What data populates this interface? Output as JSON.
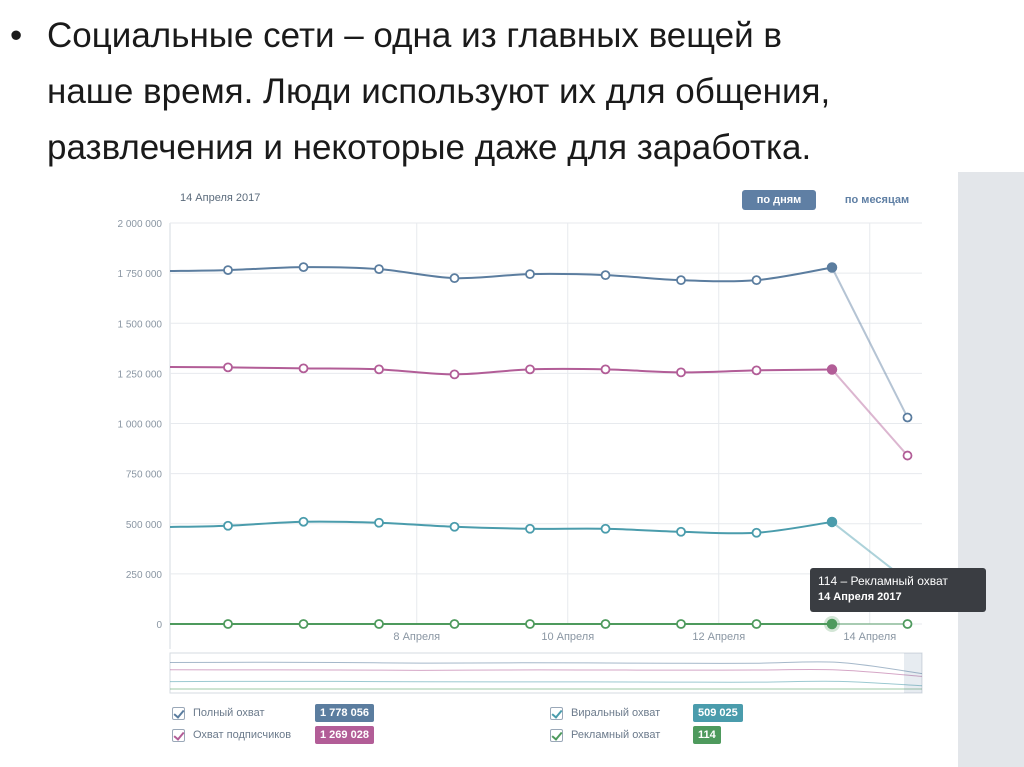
{
  "slide": {
    "bullet": "•",
    "lines": [
      "Социальные сети – одна из главных вещей в",
      "наше время. Люди используют их для общения,",
      "развлечения и некоторые даже для заработка."
    ]
  },
  "chart_header": {
    "date": "14 Апреля 2017",
    "btn_days": "по дням",
    "btn_months": "по месяцам"
  },
  "tooltip": {
    "title": "114 – Рекламный охват",
    "date": "14 Апреля 2017"
  },
  "colors": {
    "full": "#5b7d9f",
    "subscribers": "#b25d97",
    "viral": "#4a9cac",
    "ads": "#4e9a5d",
    "grid": "#e7eaee",
    "tick": "#8a96a3"
  },
  "legend": [
    {
      "label": "Полный охват",
      "value": "1 778 056",
      "color": "#5b7d9f"
    },
    {
      "label": "Охват подписчиков",
      "value": "1 269 028",
      "color": "#b25d97"
    },
    {
      "label": "Виральный охват",
      "value": "509 025",
      "color": "#4a9cac"
    },
    {
      "label": "Рекламный охват",
      "value": "114",
      "color": "#4e9a5d"
    }
  ],
  "chart_data": {
    "type": "line",
    "ylim": [
      0,
      2000000
    ],
    "yticks": [
      "2 000 000",
      "1 750 000",
      "1 500 000",
      "1 250 000",
      "1 000 000",
      "750 000",
      "500 000",
      "250 000",
      "0"
    ],
    "xticks": [
      {
        "i": 2,
        "label": "8 Апреля"
      },
      {
        "i": 4,
        "label": "10 Апреля"
      },
      {
        "i": 6,
        "label": "12 Апреля"
      },
      {
        "i": 8,
        "label": "14 Апреля"
      }
    ],
    "highlight_index": 9,
    "series": [
      {
        "name": "Полный охват",
        "values": [
          1765000,
          1780000,
          1770000,
          1725000,
          1745000,
          1740000,
          1715000,
          1715000,
          1778056,
          1030000
        ]
      },
      {
        "name": "Охват подписчиков",
        "values": [
          1280000,
          1275000,
          1270000,
          1245000,
          1270000,
          1270000,
          1255000,
          1265000,
          1269028,
          840000
        ]
      },
      {
        "name": "Виральный охват",
        "values": [
          490000,
          510000,
          505000,
          485000,
          475000,
          475000,
          460000,
          455000,
          509025,
          215000
        ]
      },
      {
        "name": "Рекламный охват",
        "values": [
          0,
          0,
          0,
          0,
          0,
          0,
          0,
          0,
          114,
          0
        ]
      }
    ]
  }
}
